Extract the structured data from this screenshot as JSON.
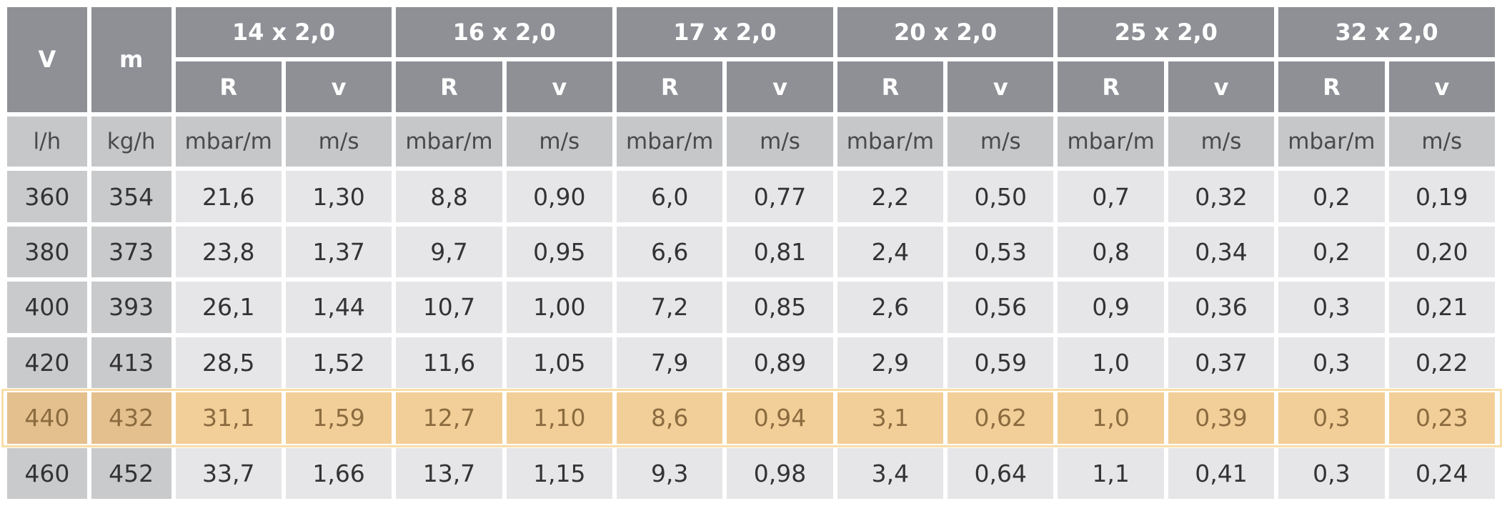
{
  "headers": {
    "v_label": "V",
    "m_label": "m",
    "dims": [
      "14 x 2,0",
      "16 x 2,0",
      "17 x 2,0",
      "20 x 2,0",
      "25 x 2,0",
      "32 x 2,0"
    ],
    "r_label": "R",
    "vel_label": "v"
  },
  "units": {
    "v": "l/h",
    "m": "kg/h",
    "r": "mbar/m",
    "vel": "m/s"
  },
  "rows": [
    [
      "360",
      "354",
      "21,6",
      "1,30",
      "8,8",
      "0,90",
      "6,0",
      "0,77",
      "2,2",
      "0,50",
      "0,7",
      "0,32",
      "0,2",
      "0,19"
    ],
    [
      "380",
      "373",
      "23,8",
      "1,37",
      "9,7",
      "0,95",
      "6,6",
      "0,81",
      "2,4",
      "0,53",
      "0,8",
      "0,34",
      "0,2",
      "0,20"
    ],
    [
      "400",
      "393",
      "26,1",
      "1,44",
      "10,7",
      "1,00",
      "7,2",
      "0,85",
      "2,6",
      "0,56",
      "0,9",
      "0,36",
      "0,3",
      "0,21"
    ],
    [
      "420",
      "413",
      "28,5",
      "1,52",
      "11,6",
      "1,05",
      "7,9",
      "0,89",
      "2,9",
      "0,59",
      "1,0",
      "0,37",
      "0,3",
      "0,22"
    ],
    [
      "440",
      "432",
      "31,1",
      "1,59",
      "12,7",
      "1,10",
      "8,6",
      "0,94",
      "3,1",
      "0,62",
      "1,0",
      "0,39",
      "0,3",
      "0,23"
    ],
    [
      "460",
      "452",
      "33,7",
      "1,66",
      "13,7",
      "1,15",
      "9,3",
      "0,98",
      "3,4",
      "0,64",
      "1,1",
      "0,41",
      "0,3",
      "0,24"
    ]
  ],
  "highlighted_row": 4,
  "colors": {
    "header_bg": "#8e9096",
    "unit_bg": "#c6c7c9",
    "cell_bg": "#e6e6e8",
    "highlight_bg": "#f2cf98"
  }
}
